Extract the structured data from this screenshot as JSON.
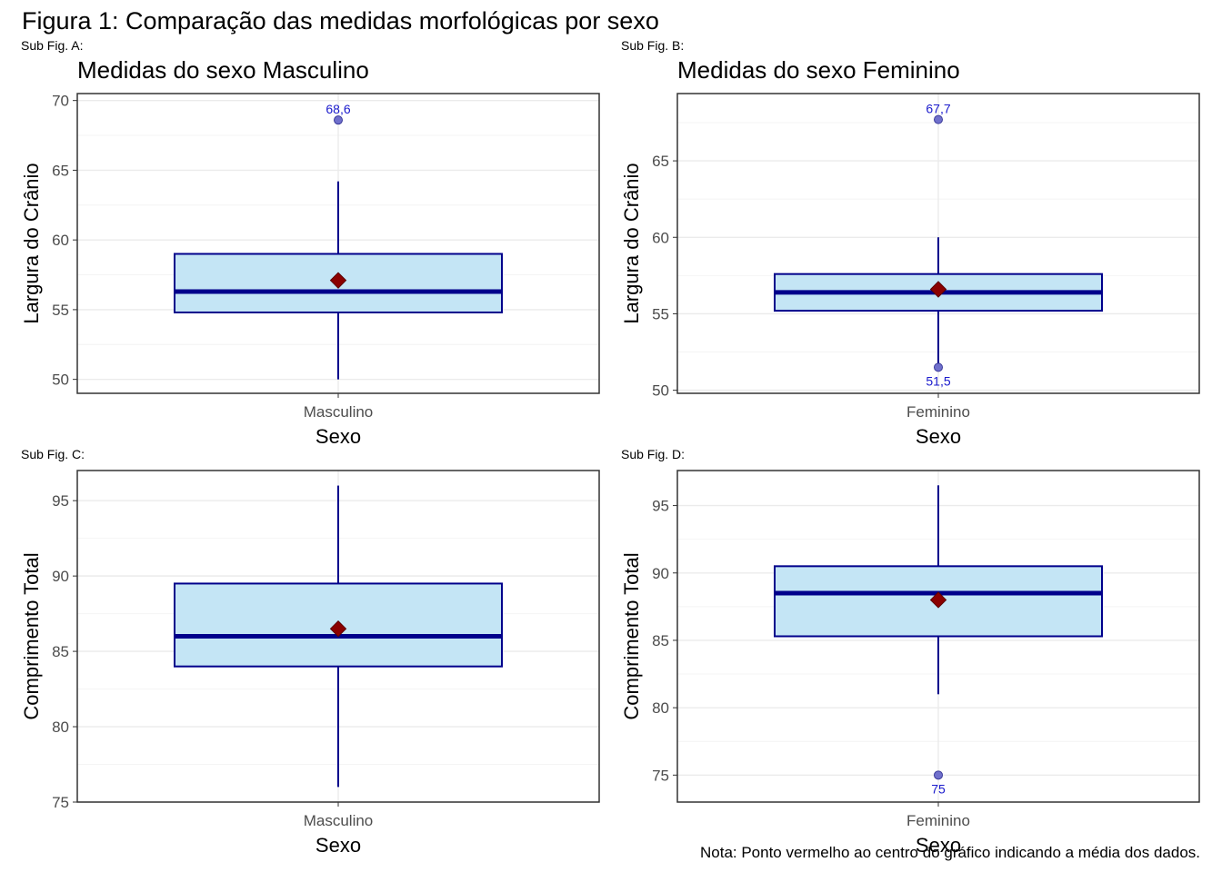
{
  "figure": {
    "title": "Figura 1: Comparação das medidas morfológicas por sexo",
    "note": "Nota: Ponto vermelho ao centro do gráfico indicando a média dos dados."
  },
  "colors": {
    "box_fill": "#c4e5f5",
    "box_line": "#00008b",
    "mean_point": "#8b0000",
    "outlier_fill": "#7070cc",
    "outlier_label": "#1a1acc",
    "grid_major": "#ebebeb",
    "grid_minor": "#f4f4f4",
    "panel_border": "#333333"
  },
  "chart_data": [
    {
      "type": "boxplot",
      "tag": "Sub Fig. A:",
      "title": "Medidas do sexo Masculino",
      "xlabel": "Sexo",
      "ylabel": "Largura do Crânio",
      "categories": [
        "Masculino"
      ],
      "ylim": [
        49,
        70.5
      ],
      "yticks": [
        50,
        55,
        60,
        65,
        70
      ],
      "box": {
        "whisker_low": 50,
        "q1": 54.8,
        "median": 56.3,
        "q3": 59,
        "whisker_high": 64.2,
        "mean": 57.1
      },
      "outliers": [
        {
          "value": 68.6,
          "label": "68,6",
          "label_pos": "above"
        }
      ]
    },
    {
      "type": "boxplot",
      "tag": "Sub Fig. B:",
      "title": "Medidas do sexo Feminino",
      "xlabel": "Sexo",
      "ylabel": "Largura do Crânio",
      "categories": [
        "Feminino"
      ],
      "ylim": [
        49.8,
        69.4
      ],
      "yticks": [
        50,
        55,
        60,
        65
      ],
      "box": {
        "whisker_low": 51.5,
        "q1": 55.2,
        "median": 56.4,
        "q3": 57.6,
        "whisker_high": 60,
        "mean": 56.6
      },
      "outliers": [
        {
          "value": 67.7,
          "label": "67,7",
          "label_pos": "above"
        },
        {
          "value": 51.5,
          "label": "51,5",
          "label_pos": "below"
        }
      ]
    },
    {
      "type": "boxplot",
      "tag": "Sub Fig. C:",
      "title": "",
      "xlabel": "Sexo",
      "ylabel": "Comprimento Total",
      "categories": [
        "Masculino"
      ],
      "ylim": [
        75,
        97
      ],
      "yticks": [
        75,
        80,
        85,
        90,
        95
      ],
      "box": {
        "whisker_low": 76,
        "q1": 84,
        "median": 86,
        "q3": 89.5,
        "whisker_high": 96,
        "mean": 86.5
      },
      "outliers": []
    },
    {
      "type": "boxplot",
      "tag": "Sub Fig. D:",
      "title": "",
      "xlabel": "Sexo",
      "ylabel": "Comprimento Total",
      "categories": [
        "Feminino"
      ],
      "ylim": [
        73,
        97.6
      ],
      "yticks": [
        75,
        80,
        85,
        90,
        95
      ],
      "box": {
        "whisker_low": 81,
        "q1": 85.3,
        "median": 88.5,
        "q3": 90.5,
        "whisker_high": 96.5,
        "mean": 88
      },
      "outliers": [
        {
          "value": 75,
          "label": "75",
          "label_pos": "below"
        }
      ]
    }
  ]
}
